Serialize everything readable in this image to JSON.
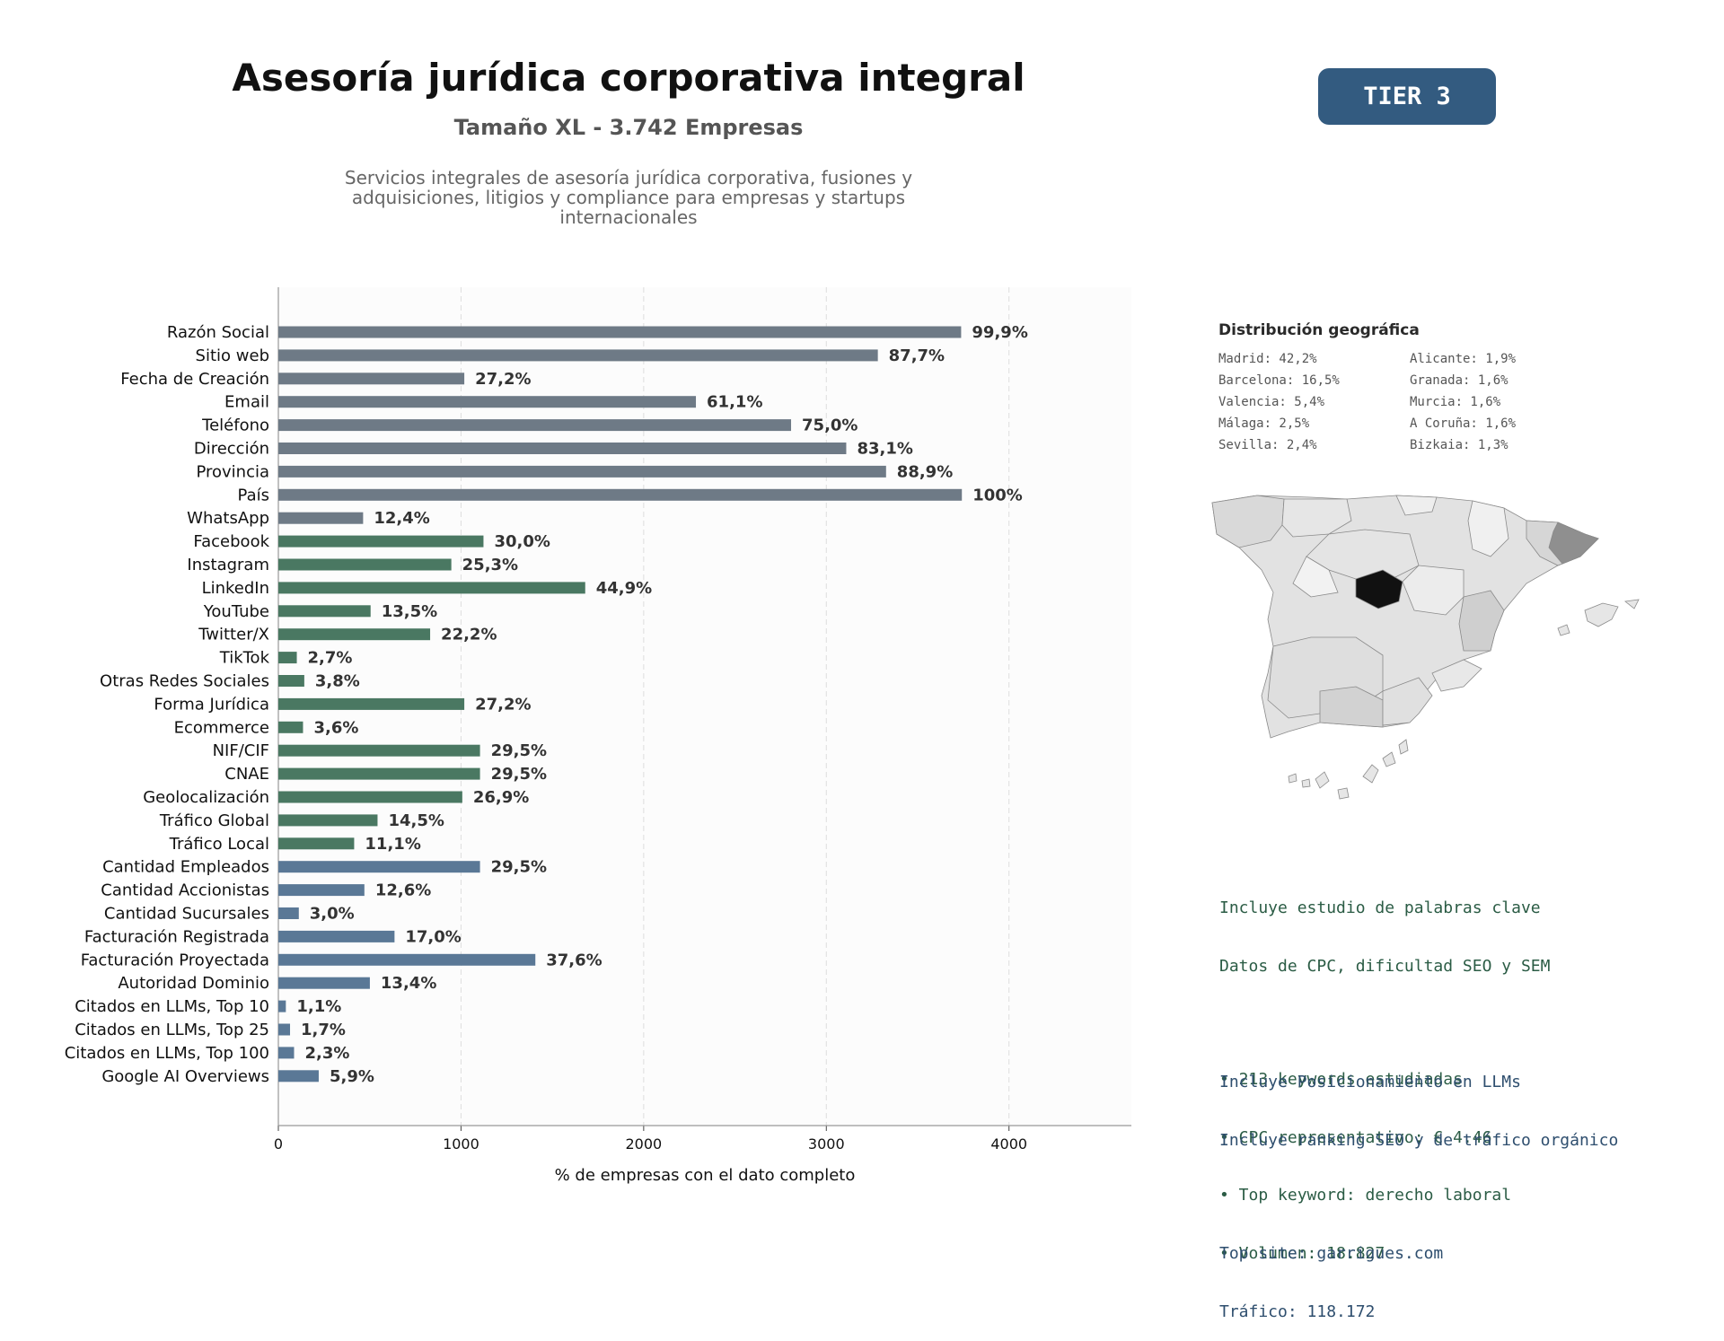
{
  "header": {
    "title": "Asesoría jurídica corporativa integral",
    "subtitle": "Tamaño XL - 3.742 Empresas",
    "description": [
      "Servicios integrales de asesoría jurídica corporativa, fusiones y",
      "adquisiciones, litigios y compliance para empresas y startups",
      "internacionales"
    ],
    "tier_badge": "TIER 3"
  },
  "chart_data": {
    "type": "bar",
    "orientation": "horizontal",
    "xlabel": "% de empresas con el dato completo",
    "xlim": [
      0,
      4670
    ],
    "xticks": [
      0,
      1000,
      2000,
      3000,
      4000
    ],
    "grid": "vertical dashed",
    "categories": [
      "Razón Social",
      "Sitio web",
      "Fecha de Creación",
      "Email",
      "Teléfono",
      "Dirección",
      "Provincia",
      "País",
      "WhatsApp",
      "Facebook",
      "Instagram",
      "LinkedIn",
      "YouTube",
      "Twitter/X",
      "TikTok",
      "Otras Redes Sociales",
      "Forma Jurídica",
      "Ecommerce",
      "NIF/CIF",
      "CNAE",
      "Geolocalización",
      "Tráfico Global",
      "Tráfico Local",
      "Cantidad Empleados",
      "Cantidad Accionistas",
      "Cantidad Sucursales",
      "Facturación Registrada",
      "Facturación Proyectada",
      "Autoridad Dominio",
      "Citados en LLMs, Top 10",
      "Citados en LLMs, Top 25",
      "Citados en LLMs, Top 100",
      "Google AI Overviews"
    ],
    "values": [
      3738,
      3282,
      1018,
      2286,
      2807,
      3109,
      3327,
      3742,
      464,
      1123,
      947,
      1680,
      505,
      831,
      101,
      142,
      1018,
      135,
      1104,
      1104,
      1007,
      543,
      415,
      1104,
      471,
      112,
      636,
      1407,
      501,
      41,
      64,
      86,
      221
    ],
    "labels": [
      "99,9%",
      "87,7%",
      "27,2%",
      "61,1%",
      "75,0%",
      "83,1%",
      "88,9%",
      "100%",
      "12,4%",
      "30,0%",
      "25,3%",
      "44,9%",
      "13,5%",
      "22,2%",
      "2,7%",
      "3,8%",
      "27,2%",
      "3,6%",
      "29,5%",
      "29,5%",
      "26,9%",
      "14,5%",
      "11,1%",
      "29,5%",
      "12,6%",
      "3,0%",
      "17,0%",
      "37,6%",
      "13,4%",
      "1,1%",
      "1,7%",
      "2,3%",
      "5,9%"
    ],
    "groups": [
      "basic",
      "basic",
      "basic",
      "basic",
      "basic",
      "basic",
      "basic",
      "basic",
      "basic",
      "social",
      "social",
      "social",
      "social",
      "social",
      "social",
      "social",
      "social",
      "social",
      "social",
      "social",
      "social",
      "social",
      "social",
      "business",
      "business",
      "business",
      "business",
      "business",
      "business",
      "business",
      "business",
      "business",
      "business"
    ],
    "colors": {
      "basic": "#6e7a86",
      "social": "#4a7862",
      "business": "#5a7896"
    }
  },
  "geo": {
    "title": "Distribución geográfica",
    "items": [
      "Madrid: 42,2%",
      "Alicante: 1,9%",
      "Barcelona: 16,5%",
      "Granada: 1,6%",
      "Valencia: 5,4%",
      "Murcia: 1,6%",
      "Málaga: 2,5%",
      "A Coruña: 1,6%",
      "Sevilla: 2,4%",
      "Bizkaia: 1,3%"
    ]
  },
  "keywords": {
    "lines": [
      "Incluye estudio de palabras clave",
      "Datos de CPC, dificultad SEO y SEM"
    ],
    "bullets": [
      "• 213 keywords estudiadas",
      "• CPC representativo: € 4.46",
      "• Top keyword: derecho laboral",
      "• Volumen: 18.827"
    ]
  },
  "llm": {
    "lines": [
      "Incluye Posicionamiento en LLMs",
      "Incluye ranking SEO y de tráfico orgánico"
    ],
    "site_lines": [
      "Top site: garrigues.com",
      "Tráfico: 118.172"
    ]
  }
}
